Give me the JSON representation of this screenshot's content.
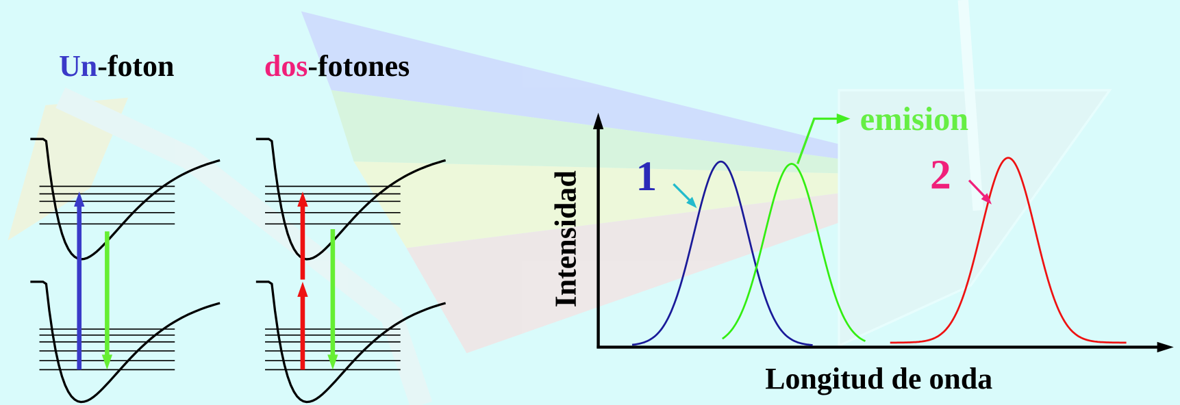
{
  "left_panel": {
    "one_photon": {
      "highlight": "Un",
      "rest": "-foton"
    },
    "two_photon": {
      "highlight": "dos",
      "rest": "-fotones"
    }
  },
  "spectrum": {
    "y_axis_label": "Intensidad",
    "x_axis_label": "Longitud de onda",
    "emission_label": "emision",
    "peak_1_label": "1",
    "peak_2_label": "2"
  }
}
